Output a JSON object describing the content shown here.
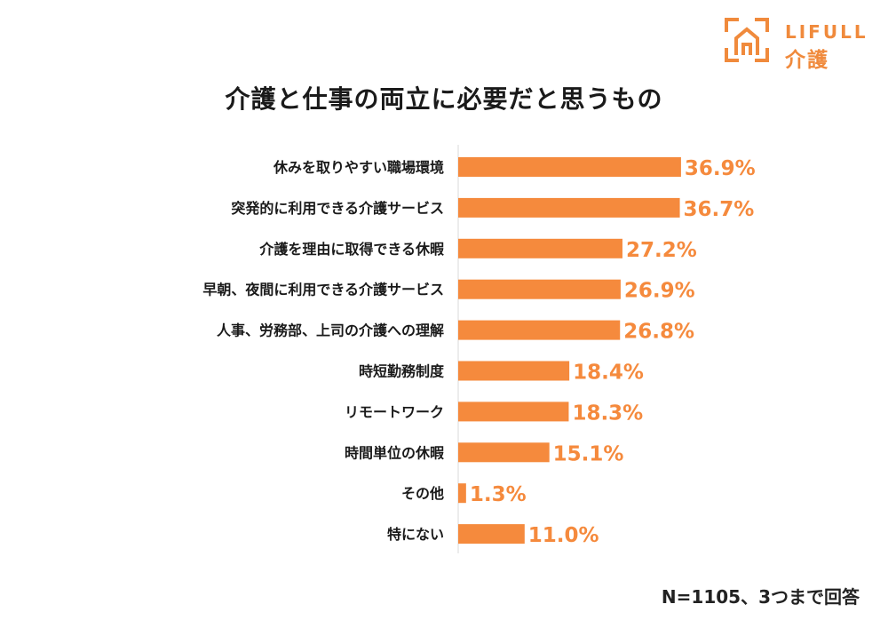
{
  "brand": {
    "name_en": "LIFULL",
    "name_ja": "介護",
    "color": "#f08a3c"
  },
  "note": "N=1105、3つまで回答",
  "chart_data": {
    "type": "bar",
    "orientation": "horizontal",
    "title": "介護と仕事の両立に必要だと思うもの",
    "unit": "%",
    "xlim": [
      0,
      100
    ],
    "bar_color": "#f58a3d",
    "label_color": "#f58a3d",
    "categories": [
      "休みを取りやすい職場環境",
      "突発的に利用できる介護サービス",
      "介護を理由に取得できる休暇",
      "早朝、夜間に利用できる介護サービス",
      "人事、労務部、上司の介護への理解",
      "時短勤務制度",
      "リモートワーク",
      "時間単位の休暇",
      "その他",
      "特にない"
    ],
    "values": [
      36.9,
      36.7,
      27.2,
      26.9,
      26.8,
      18.4,
      18.3,
      15.1,
      1.3,
      11.0
    ],
    "value_labels": [
      "36.9%",
      "36.7%",
      "27.2%",
      "26.9%",
      "26.8%",
      "18.4%",
      "18.3%",
      "15.1%",
      "1.3%",
      "11.0%"
    ]
  }
}
